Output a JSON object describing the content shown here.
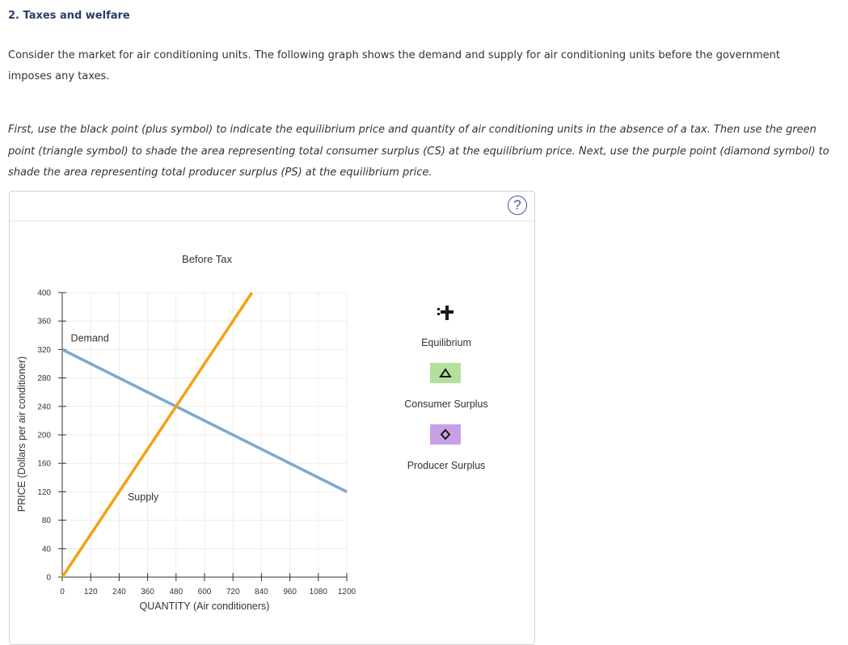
{
  "question_title": "2. Taxes and welfare",
  "intro_text": "Consider the market for air conditioning units. The following graph shows the demand and supply for air conditioning units before the government imposes any taxes.",
  "instructions_text": "First, use the black point (plus symbol) to indicate the equilibrium price and quantity of air conditioning units in the absence of a tax. Then use the green point (triangle symbol) to shade the area representing total consumer surplus (CS) at the equilibrium price. Next, use the purple point (diamond symbol) to shade the area representing total producer surplus (PS) at the equilibrium price.",
  "help_label": "?",
  "chart_data": {
    "type": "line",
    "title": "Before Tax",
    "xlabel": "QUANTITY (Air conditioners)",
    "ylabel": "PRICE (Dollars per air conditioner)",
    "xlim": [
      0,
      1200
    ],
    "ylim": [
      0,
      400
    ],
    "xticks": [
      0,
      120,
      240,
      360,
      480,
      600,
      720,
      840,
      960,
      1080,
      1200
    ],
    "yticks": [
      0,
      40,
      80,
      120,
      160,
      200,
      240,
      280,
      320,
      360,
      400
    ],
    "grid": true,
    "series": [
      {
        "name": "Demand",
        "color": "#7ba7d0",
        "points": [
          [
            0,
            320
          ],
          [
            1200,
            120
          ]
        ]
      },
      {
        "name": "Supply",
        "color": "#f5a014",
        "points": [
          [
            0,
            0
          ],
          [
            800,
            400
          ]
        ]
      }
    ],
    "curve_labels": [
      {
        "text": "Demand",
        "x": 36,
        "y": 331
      },
      {
        "text": "Supply",
        "x": 276,
        "y": 108
      }
    ],
    "legend_placement": "right"
  },
  "legend": {
    "equilibrium": {
      "label": "Equilibrium",
      "icon": "plus-icon",
      "color": "#1a1a1a"
    },
    "consumer_surplus": {
      "label": "Consumer Surplus",
      "icon": "triangle-icon",
      "color": "#b3e09b"
    },
    "producer_surplus": {
      "label": "Producer Surplus",
      "icon": "diamond-icon",
      "color": "#c9a0e6"
    }
  }
}
